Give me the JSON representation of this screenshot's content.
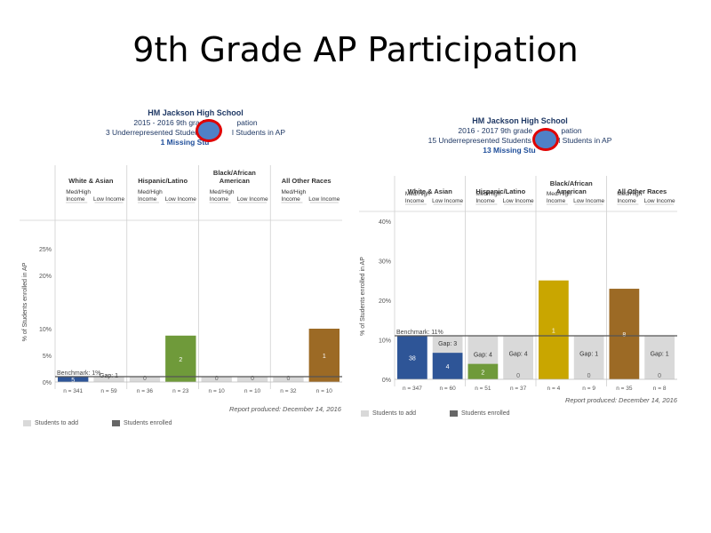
{
  "slide_title": "9th Grade AP Participation",
  "chart_data": [
    {
      "type": "bar",
      "school": "HM Jackson High School",
      "subtitle": "2015 - 2016 9th grade ",
      "subtitle_tail": "pation",
      "underrep_line_start": "3 Underrepresented Students in A",
      "underrep_line_end": "l Students in AP",
      "missing_line": "1 Missing Stu",
      "ylabel": "% of Students enrolled in AP",
      "y_ticks": [
        0,
        5,
        10,
        15,
        20,
        25
      ],
      "y_tick_labels": [
        "0%",
        "5%",
        "10%",
        "",
        "20%",
        "25%"
      ],
      "ylim": [
        0,
        30
      ],
      "benchmark": 1,
      "benchmark_label": "Benchmark: 1%",
      "groups": [
        "White & Asian",
        "Hispanic/Latino",
        "Black/African American",
        "All Other Races"
      ],
      "subgroups": [
        "Med/High Income",
        "Low Income"
      ],
      "bars": [
        {
          "group": 0,
          "sub": 0,
          "enrolled": 1,
          "count": "5",
          "n": "n = 341",
          "color": "#2e5597"
        },
        {
          "group": 0,
          "sub": 1,
          "enrolled": 0,
          "count": "",
          "gap": "Gap: 1",
          "n": "n = 59",
          "color": "#2e5597"
        },
        {
          "group": 1,
          "sub": 0,
          "enrolled": 0,
          "count": "0",
          "n": "n = 36",
          "color": "#6f9a3a"
        },
        {
          "group": 1,
          "sub": 1,
          "enrolled": 8.7,
          "count": "2",
          "n": "n = 23",
          "color": "#6f9a3a"
        },
        {
          "group": 2,
          "sub": 0,
          "enrolled": 0,
          "count": "0",
          "n": "n = 10",
          "color": "#c9a600"
        },
        {
          "group": 2,
          "sub": 1,
          "enrolled": 0,
          "count": "0",
          "n": "n = 10",
          "color": "#c9a600"
        },
        {
          "group": 3,
          "sub": 0,
          "enrolled": 0,
          "count": "0",
          "n": "n = 32",
          "color": "#9c6a25"
        },
        {
          "group": 3,
          "sub": 1,
          "enrolled": 10,
          "count": "1",
          "n": "n = 10",
          "color": "#9c6a25"
        }
      ],
      "report_produced": "Report produced: December 14, 2016",
      "legend": [
        "Students to add",
        "Students enrolled"
      ]
    },
    {
      "type": "bar",
      "school": "HM Jackson High School",
      "subtitle": "2016 - 2017 9th grade ",
      "subtitle_tail": "pation",
      "underrep_line_start": "15 Underrepresented Students in A",
      "underrep_line_end": "l Students in AP",
      "missing_line": "13 Missing Stu",
      "ylabel": "% of Students enrolled in AP",
      "y_ticks": [
        0,
        10,
        20,
        30,
        40
      ],
      "y_tick_labels": [
        "0%",
        "10%",
        "20%",
        "30%",
        "40%"
      ],
      "ylim": [
        0,
        42
      ],
      "benchmark": 11,
      "benchmark_label": "Benchmark: 11%",
      "groups": [
        "White & Asian",
        "Hispanic/Latino",
        "Black/African American",
        "All Other Races"
      ],
      "subgroups": [
        "Med/High Income",
        "Low Income"
      ],
      "bars": [
        {
          "group": 0,
          "sub": 0,
          "enrolled": 11,
          "count": "38",
          "n": "n = 347",
          "color": "#2e5597"
        },
        {
          "group": 0,
          "sub": 1,
          "enrolled": 6.7,
          "count": "4",
          "gap": "Gap: 3",
          "n": "n = 60",
          "color": "#2e5597"
        },
        {
          "group": 1,
          "sub": 0,
          "enrolled": 3.9,
          "count": "2",
          "gap": "Gap: 4",
          "n": "n = 51",
          "color": "#6f9a3a"
        },
        {
          "group": 1,
          "sub": 1,
          "enrolled": 0,
          "count": "0",
          "gap": "Gap: 4",
          "n": "n = 37",
          "color": "#6f9a3a"
        },
        {
          "group": 2,
          "sub": 0,
          "enrolled": 25,
          "count": "1",
          "n": "n = 4",
          "color": "#c9a600"
        },
        {
          "group": 2,
          "sub": 1,
          "enrolled": 0,
          "count": "0",
          "gap": "Gap: 1",
          "n": "n = 9",
          "color": "#c9a600"
        },
        {
          "group": 3,
          "sub": 0,
          "enrolled": 22.9,
          "count": "8",
          "n": "n = 35",
          "color": "#9c6a25"
        },
        {
          "group": 3,
          "sub": 1,
          "enrolled": 0,
          "count": "0",
          "gap": "Gap: 1",
          "n": "n = 8",
          "color": "#9c6a25"
        }
      ],
      "report_produced": "Report produced: December 14, 2016",
      "legend": [
        "Students to add",
        "Students enrolled"
      ]
    }
  ]
}
